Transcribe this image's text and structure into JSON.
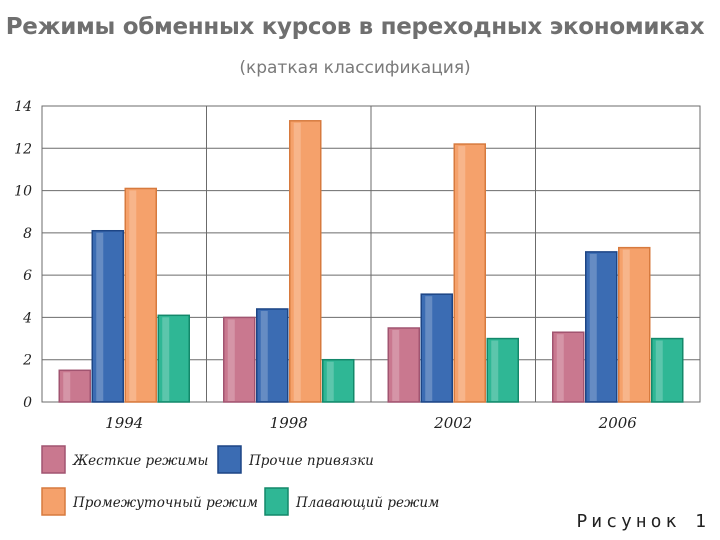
{
  "title": "Режимы обменных курсов в переходных экономиках",
  "subtitle": "(краткая классификация)",
  "figure_label": "Рисунок 1",
  "chart_data": {
    "type": "bar",
    "categories": [
      "1994",
      "1998",
      "2002",
      "2006"
    ],
    "ylim": [
      0,
      14
    ],
    "yticks": [
      0,
      2,
      4,
      6,
      8,
      10,
      12,
      14
    ],
    "grid": true,
    "legend_position": "bottom",
    "series": [
      {
        "name": "Жесткие режимы",
        "values": [
          1.5,
          4.0,
          3.5,
          3.3
        ],
        "color": "#c9788f",
        "stroke": "#a15470"
      },
      {
        "name": "Прочие привязки",
        "values": [
          8.1,
          4.4,
          5.1,
          7.1
        ],
        "color": "#3b6cb3",
        "stroke": "#1d4585"
      },
      {
        "name": "Промежуточный режим",
        "values": [
          10.1,
          13.3,
          12.2,
          7.3
        ],
        "color": "#f5a16b",
        "stroke": "#d77a3e"
      },
      {
        "name": "Плавающий режим",
        "values": [
          4.1,
          2.0,
          3.0,
          3.0
        ],
        "color": "#2fb795",
        "stroke": "#13886a"
      }
    ]
  }
}
